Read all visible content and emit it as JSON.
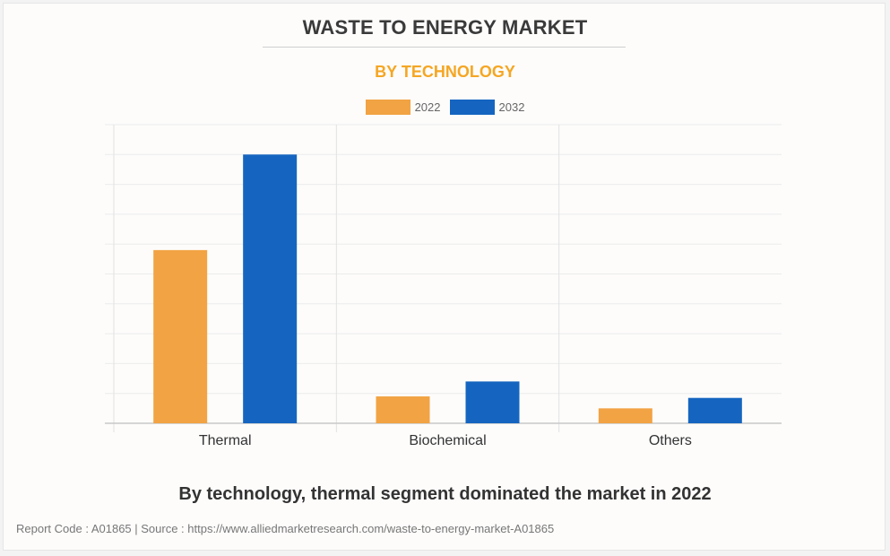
{
  "header": {
    "title": "WASTE TO ENERGY MARKET",
    "subtitle": "BY TECHNOLOGY"
  },
  "caption": "By technology, thermal segment dominated the market in 2022",
  "footer": "Report Code : A01865  |  Source : https://www.alliedmarketresearch.com/waste-to-energy-market-A01865",
  "colors": {
    "2022": "#f2a343",
    "2032": "#1565c0",
    "subtitle": "#f5a623"
  },
  "chart_data": {
    "type": "bar",
    "title": "WASTE TO ENERGY MARKET",
    "subtitle": "BY TECHNOLOGY",
    "xlabel": "",
    "ylabel": "",
    "categories": [
      "Thermal",
      "Biochemical",
      "Others"
    ],
    "series": [
      {
        "name": "2022",
        "color": "#f2a343",
        "values": [
          5.8,
          0.9,
          0.5
        ]
      },
      {
        "name": "2032",
        "color": "#1565c0",
        "values": [
          9.0,
          1.4,
          0.85
        ]
      }
    ],
    "ylim": [
      0,
      10
    ],
    "y_gridlines": 10,
    "grid": true,
    "y_tick_labels_shown": false,
    "legend": "top-center"
  }
}
